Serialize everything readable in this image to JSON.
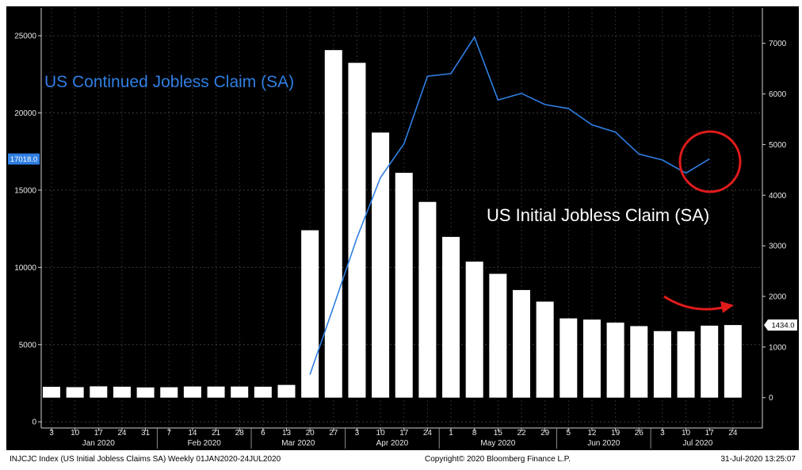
{
  "chart_data": {
    "type": "bar",
    "title": "",
    "footer": {
      "left": "INJCJC Index (US Initial Jobless Claims SA)  Weekly 01JAN2020-24JUL2020",
      "center": "Copyright© 2020 Bloomberg Finance L.P.",
      "right": "31-Jul-2020 13:25:07"
    },
    "x_ticks": [
      "3",
      "10",
      "17",
      "24",
      "31",
      "7",
      "14",
      "21",
      "28",
      "6",
      "13",
      "20",
      "27",
      "3",
      "10",
      "17",
      "24",
      "1",
      "8",
      "15",
      "22",
      "29",
      "5",
      "12",
      "19",
      "26",
      "3",
      "10",
      "17",
      "24"
    ],
    "month_labels": [
      {
        "label": "Jan 2020",
        "start": 0,
        "end": 4
      },
      {
        "label": "Feb 2020",
        "start": 5,
        "end": 8
      },
      {
        "label": "Mar 2020",
        "start": 9,
        "end": 12
      },
      {
        "label": "Apr 2020",
        "start": 13,
        "end": 16
      },
      {
        "label": "May 2020",
        "start": 17,
        "end": 21
      },
      {
        "label": "Jun 2020",
        "start": 22,
        "end": 25
      },
      {
        "label": "Jul 2020",
        "start": 26,
        "end": 29
      }
    ],
    "left_axis": {
      "ticks": [
        0,
        5000,
        10000,
        15000,
        20000,
        25000
      ],
      "range": [
        -400,
        26800
      ]
    },
    "right_axis": {
      "ticks": [
        0,
        1000,
        2000,
        3000,
        4000,
        5000,
        6000,
        7000
      ],
      "range": [
        -600,
        7700
      ]
    },
    "series": [
      {
        "name": "US Initial Jobless Claim (SA)",
        "type": "bar",
        "axis": "right",
        "color": "#ffffff",
        "values": [
          214,
          207,
          223,
          216,
          202,
          205,
          220,
          219,
          219,
          216,
          251,
          3307,
          6867,
          6615,
          5237,
          4442,
          3867,
          3176,
          2687,
          2446,
          2126,
          1897,
          1566,
          1542,
          1482,
          1413,
          1314,
          1310,
          1422,
          1434
        ]
      },
      {
        "name": "US Continued Jobless Claim (SA)",
        "type": "line",
        "axis": "left",
        "color": "#2f7fe3",
        "values": [
          null,
          null,
          null,
          null,
          null,
          null,
          null,
          null,
          null,
          null,
          null,
          3059,
          7446,
          11914,
          15819,
          18011,
          22377,
          22548,
          24912,
          20838,
          21268,
          20544,
          20289,
          19231,
          18760,
          17338,
          16951,
          16107,
          17018,
          null
        ]
      }
    ],
    "last_value_left": "17018.0",
    "last_value_right": "1434.0",
    "annotations": [
      {
        "text": "US Continued Jobless Claim (SA)",
        "color": "#2f7fe3"
      },
      {
        "text": "US Initial Jobless Claim (SA)",
        "color": "#ffffff"
      }
    ],
    "highlight_color": "#e01b1b",
    "background_color": "#000000",
    "grid": true,
    "legend": "none"
  }
}
